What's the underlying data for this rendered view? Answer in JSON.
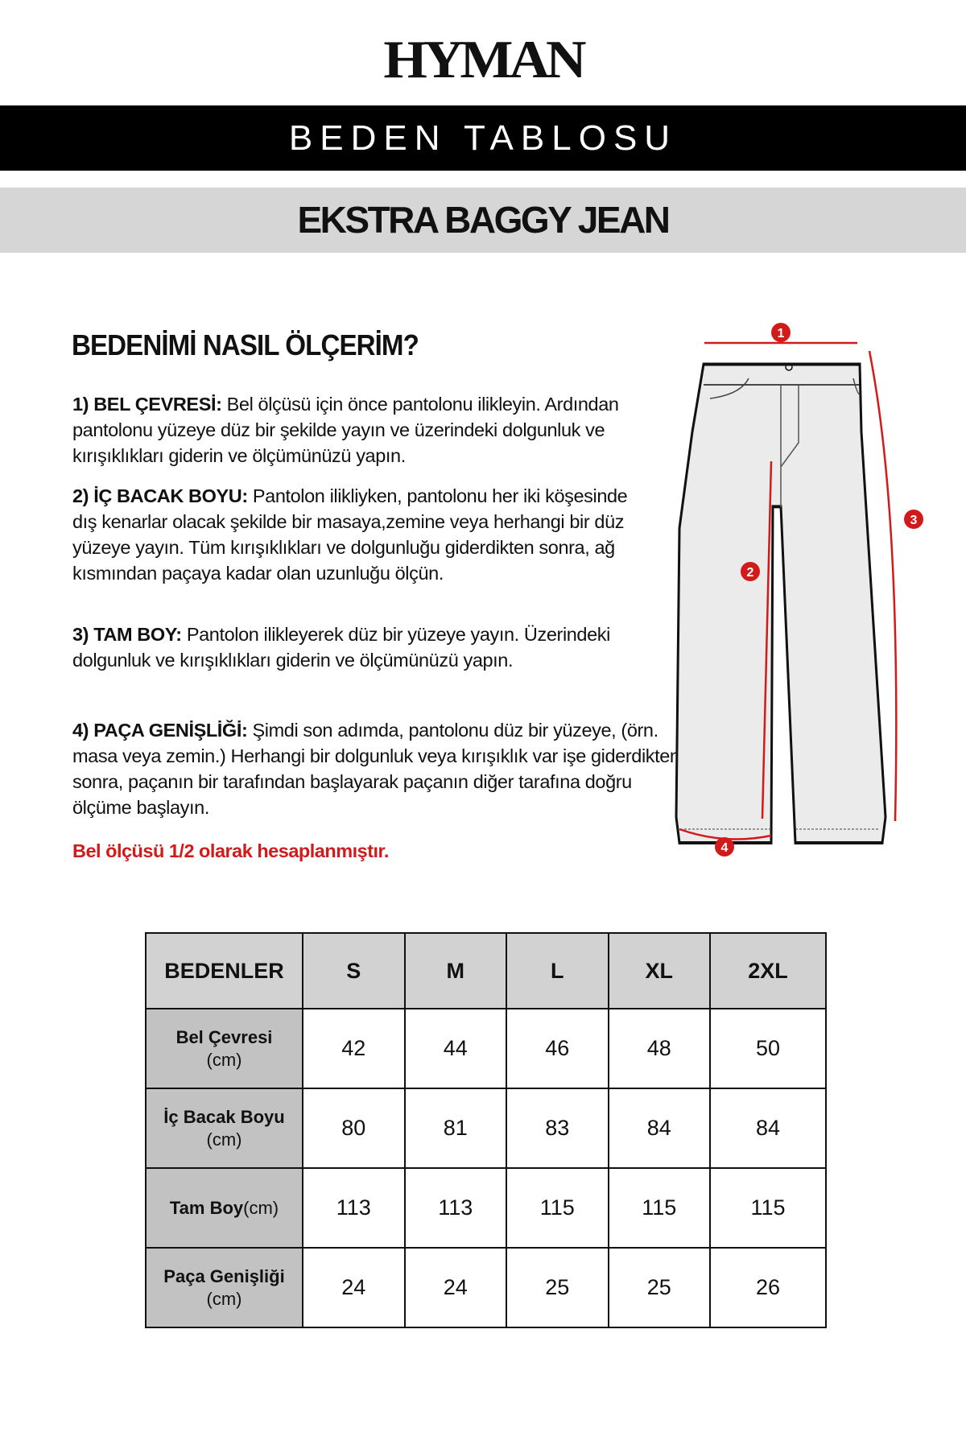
{
  "brand": "HYMAN",
  "banner_title": "BEDEN TABLOSU",
  "product_title": "EKSTRA BAGGY JEAN",
  "guide": {
    "heading": "BEDENİMİ NASIL ÖLÇERİM?",
    "steps": [
      {
        "label": "1) BEL ÇEVRESİ:",
        "text": " Bel ölçüsü için önce pantolonu ilikleyin. Ardından pantolonu yüzeye düz bir şekilde yayın ve üzerindeki dolgunluk ve kırışıklıkları giderin ve ölçümünüzü yapın."
      },
      {
        "label": "2) İÇ BACAK BOYU:",
        "text": " Pantolon ilikliyken, pantolonu her iki köşesinde dış kenarlar olacak şekilde bir masaya,zemine veya herhangi bir düz yüzeye yayın. Tüm kırışıklıkları ve dolgunluğu giderdikten sonra, ağ kısmından paçaya kadar olan uzunluğu ölçün."
      },
      {
        "label": "3) TAM BOY:",
        "text": " Pantolon ilikleyerek düz bir yüzeye yayın. Üzerindeki dolgunluk ve kırışıklıkları giderin ve ölçümünüzü yapın."
      },
      {
        "label": "4) PAÇA GENİŞLİĞİ:",
        "text": " Şimdi son adımda, pantolonu düz bir yüzeye, (örn. masa veya zemin.) Herhangi bir dolgunluk veya kırışıklık var işe giderdikten sonra, paçanın bir tarafından başlayarak paçanın diğer tarafına doğru ölçüme başlayın."
      }
    ],
    "note": "Bel ölçüsü 1/2 olarak hesaplanmıştır."
  },
  "diagram": {
    "markers": [
      "1",
      "2",
      "3",
      "4"
    ],
    "accent_color": "#d21a1a"
  },
  "size_table": {
    "header": [
      "BEDENLER",
      "S",
      "M",
      "L",
      "XL",
      "2XL"
    ],
    "rows": [
      {
        "label": "Bel Çevresi",
        "unit": "(cm)",
        "values": [
          "42",
          "44",
          "46",
          "48",
          "50"
        ]
      },
      {
        "label": "İç Bacak Boyu",
        "unit": "(cm)",
        "values": [
          "80",
          "81",
          "83",
          "84",
          "84"
        ]
      },
      {
        "label": "Tam Boy",
        "unit": "(cm)",
        "values": [
          "113",
          "113",
          "115",
          "115",
          "115"
        ]
      },
      {
        "label": "Paça Genişliği",
        "unit": "(cm)",
        "values": [
          "24",
          "24",
          "25",
          "25",
          "26"
        ]
      }
    ]
  }
}
